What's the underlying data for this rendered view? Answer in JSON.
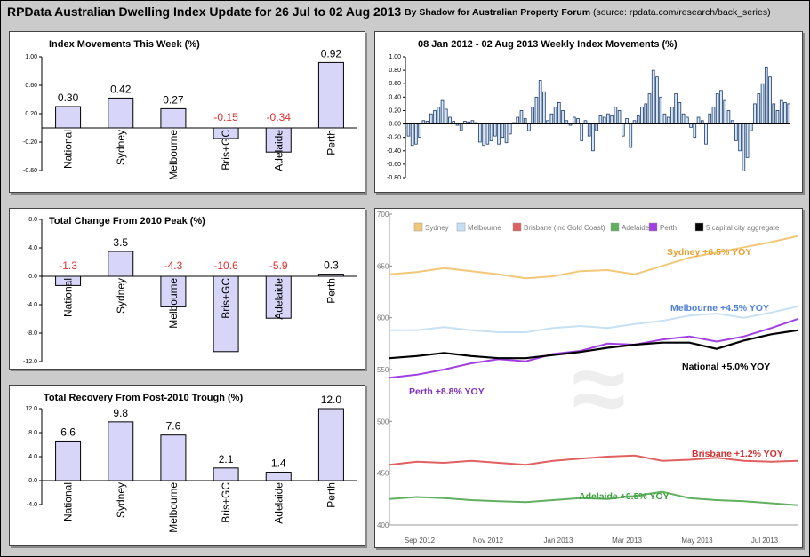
{
  "header": {
    "title": "RPData Australian Dwelling Index Update for 26 Jul to 02 Aug 2013",
    "byline_bold": "By Shadow for Australian Property Forum",
    "byline_source": "(source: rpdata.com/research/back_series)"
  },
  "chart_data": [
    {
      "type": "bar",
      "title": "Index Movements This Week (%)",
      "categories": [
        "National",
        "Sydney",
        "Melbourne",
        "Bris+GC",
        "Adelaide",
        "Perth"
      ],
      "values": [
        0.3,
        0.42,
        0.27,
        -0.15,
        -0.34,
        0.92
      ],
      "value_labels": [
        "0.30",
        "0.42",
        "0.27",
        "-0.15",
        "-0.34",
        "0.92"
      ],
      "yticks": [
        "1.00",
        "0.60",
        "0.20",
        "-0.20",
        "-0.60"
      ],
      "ylim": [
        -0.6,
        1.0
      ]
    },
    {
      "type": "bar",
      "title": "08 Jan 2012 - 02 Aug 2013 Weekly Index Movements (%)",
      "yticks": [
        "1.00",
        "0.80",
        "0.60",
        "0.40",
        "0.20",
        "0.00",
        "-0.20",
        "-0.40",
        "-0.60",
        "-0.80"
      ],
      "ylim": [
        -0.8,
        1.0
      ],
      "series": [
        {
          "values": [
            -0.18,
            -0.32,
            -0.3,
            -0.2,
            0.05,
            0.04,
            0.15,
            0.2,
            0.25,
            0.35,
            0.22,
            0.1,
            0.04,
            -0.02,
            -0.1,
            0.04,
            0.03,
            0.05,
            0.02,
            -0.27,
            -0.32,
            -0.3,
            -0.25,
            -0.18,
            -0.3,
            -0.2,
            -0.28,
            -0.15,
            0.02,
            0.1,
            0.2,
            0.08,
            -0.1,
            0.25,
            0.4,
            0.65,
            0.48,
            0.05,
            0.15,
            0.25,
            0.32,
            0.2,
            0.05,
            -0.02,
            0.1,
            0.08,
            -0.25,
            0.05,
            -0.18,
            -0.4,
            -0.1,
            0.12,
            0.1,
            0.15,
            0.12,
            0.25,
            0.2,
            -0.18,
            0.08,
            -0.35,
            0.05,
            0.12,
            0.25,
            0.3,
            0.45,
            0.8,
            0.7,
            0.4,
            0.15,
            0.1,
            0.25,
            0.45,
            0.32,
            0.15,
            0.1,
            -0.05,
            -0.2,
            0.1,
            0.05,
            -0.3,
            0.15,
            0.25,
            0.45,
            0.5,
            0.35,
            0.2,
            0.05,
            -0.25,
            -0.4,
            -0.7,
            -0.5,
            -0.1,
            0.3,
            0.45,
            0.6,
            0.85,
            0.7,
            0.3,
            0.2,
            0.35,
            0.32,
            0.3
          ]
        }
      ]
    },
    {
      "type": "bar",
      "title": "Total Change From 2010 Peak (%)",
      "categories": [
        "National",
        "Sydney",
        "Melbourne",
        "Bris+GC",
        "Adelaide",
        "Perth"
      ],
      "values": [
        -1.3,
        3.5,
        -4.3,
        -10.6,
        -5.9,
        0.3
      ],
      "value_labels": [
        "-1.3",
        "3.5",
        "-4.3",
        "-10.6",
        "-5.9",
        "0.3"
      ],
      "yticks": [
        "8.0",
        "4.0",
        "0.0",
        "-4.0",
        "-8.0",
        "-12.0"
      ],
      "ylim": [
        -12,
        8
      ]
    },
    {
      "type": "bar",
      "title": "Total Recovery From Post-2010 Trough (%)",
      "categories": [
        "National",
        "Sydney",
        "Melbourne",
        "Bris+GC",
        "Adelaide",
        "Perth"
      ],
      "values": [
        6.6,
        9.8,
        7.6,
        2.1,
        1.4,
        12.0
      ],
      "value_labels": [
        "6.6",
        "9.8",
        "7.6",
        "2.1",
        "1.4",
        "12.0"
      ],
      "yticks": [
        "12.0",
        "8.0",
        "4.0",
        "0.0",
        "-4.0"
      ],
      "ylim": [
        -4,
        12
      ]
    },
    {
      "type": "line",
      "legend": [
        "Sydney",
        "Melbourne",
        "Brisbane (inc Gold Coast)",
        "Adelaide",
        "Perth",
        "5 capital city aggregate"
      ],
      "yticks": [
        "700",
        "650",
        "600",
        "550",
        "500",
        "450",
        "400"
      ],
      "ylim": [
        400,
        700
      ],
      "xticks": [
        "Sep 2012",
        "Nov 2012",
        "Jan 2013",
        "Mar 2013",
        "May 2013",
        "Jul 2013"
      ],
      "annotations": [
        "Sydney +6.5% YOY",
        "Melbourne +4.5% YOY",
        "National +5.0% YOY",
        "Perth +8.8% YOY",
        "Brisbane +1.2% YOY",
        "Adelaide +0.5% YOY"
      ],
      "series": [
        {
          "name": "Sydney",
          "color": "#f0c878",
          "values": [
            642,
            644,
            648,
            645,
            642,
            638,
            640,
            645,
            646,
            642,
            650,
            658,
            663,
            668,
            673,
            679
          ]
        },
        {
          "name": "Melbourne",
          "color": "#c8e0f4",
          "values": [
            588,
            588,
            591,
            588,
            586,
            586,
            590,
            592,
            590,
            594,
            597,
            602,
            604,
            600,
            605,
            611
          ]
        },
        {
          "name": "Brisbane (inc Gold Coast)",
          "color": "#e06060",
          "values": [
            458,
            461,
            460,
            462,
            460,
            458,
            462,
            464,
            466,
            467,
            462,
            463,
            465,
            462,
            461,
            462
          ]
        },
        {
          "name": "Adelaide",
          "color": "#60b060",
          "values": [
            425,
            427,
            426,
            424,
            423,
            422,
            424,
            426,
            425,
            428,
            432,
            426,
            424,
            423,
            421,
            419
          ]
        },
        {
          "name": "Perth",
          "color": "#a040e0",
          "values": [
            542,
            545,
            550,
            556,
            560,
            558,
            565,
            568,
            575,
            574,
            579,
            582,
            577,
            582,
            590,
            599
          ]
        },
        {
          "name": "5 capital city aggregate",
          "color": "#000000",
          "values": [
            561,
            563,
            566,
            563,
            561,
            561,
            564,
            567,
            571,
            574,
            576,
            576,
            570,
            578,
            584,
            588
          ]
        }
      ],
      "colors": [
        "#f0c878",
        "#c8e0f4",
        "#e06060",
        "#60b060",
        "#a040e0",
        "#000000"
      ]
    }
  ]
}
